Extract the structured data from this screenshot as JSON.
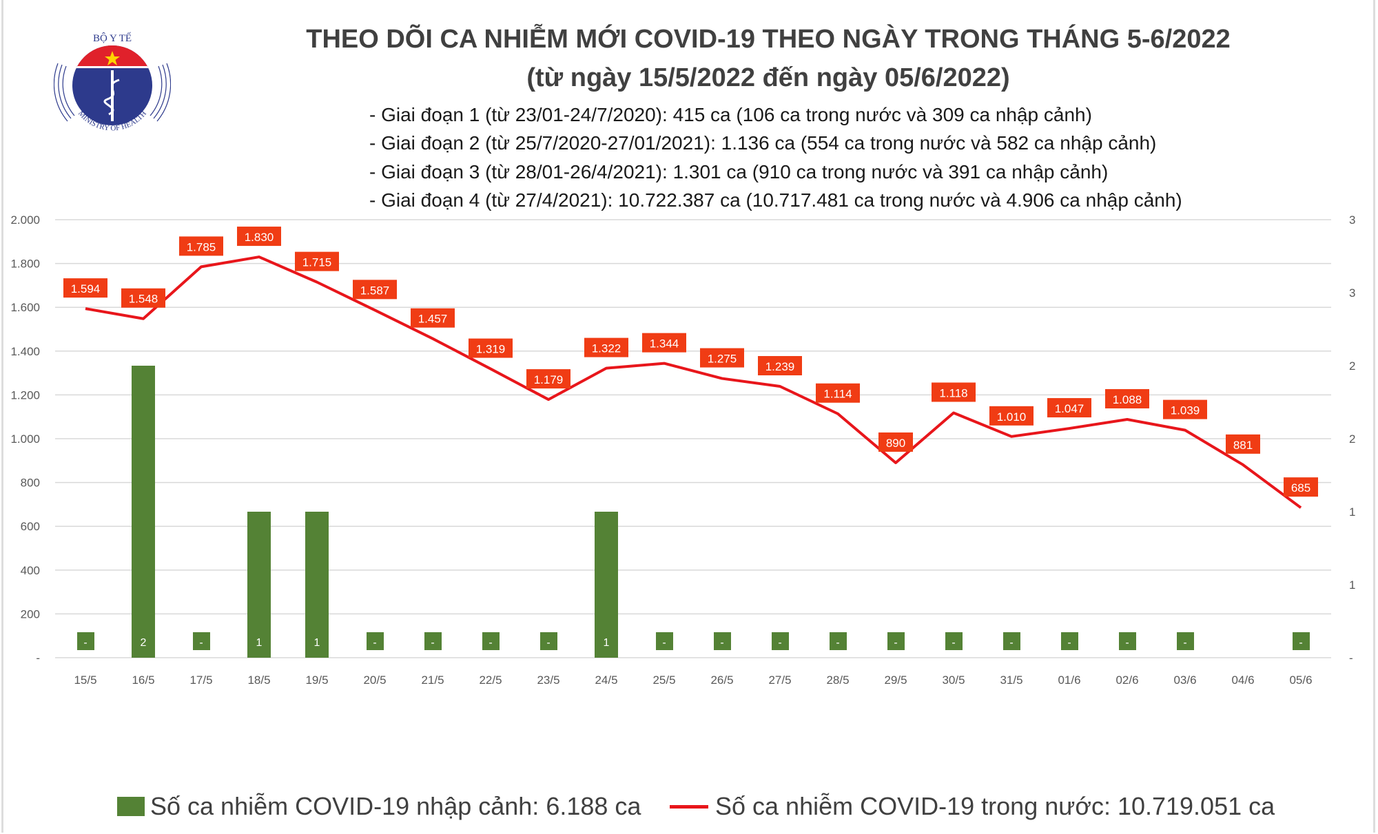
{
  "logo": {
    "text_top": "BỘ Y TẾ",
    "text_bottom": "MINISTRY OF HEALTH"
  },
  "header": {
    "title": "THEO DÕI CA NHIỄM MỚI COVID-19 THEO NGÀY TRONG THÁNG 5-6/2022",
    "subtitle": "(từ ngày 15/5/2022 đến ngày 05/6/2022)",
    "stages": [
      "- Giai đoạn 1 (từ 23/01-24/7/2020): 415 ca (106 ca trong nước và 309 ca nhập cảnh)",
      "- Giai đoạn 2 (từ 25/7/2020-27/01/2021): 1.136 ca (554 ca trong nước và 582 ca nhập cảnh)",
      "- Giai đoạn 3 (từ 28/01-26/4/2021): 1.301 ca (910 ca trong nước và 391 ca nhập cảnh)",
      "- Giai đoạn 4 (từ 27/4/2021): 10.722.387 ca (10.717.481 ca trong nước và 4.906 ca nhập cảnh)"
    ]
  },
  "chart_data": {
    "type": "bar+line",
    "categories": [
      "15/5",
      "16/5",
      "17/5",
      "18/5",
      "19/5",
      "20/5",
      "21/5",
      "22/5",
      "23/5",
      "24/5",
      "25/5",
      "26/5",
      "27/5",
      "28/5",
      "29/5",
      "30/5",
      "31/5",
      "01/6",
      "02/6",
      "03/6",
      "04/6",
      "05/6"
    ],
    "series": [
      {
        "name": "Số ca nhiễm COVID-19 nhập cảnh: 6.188 ca",
        "type": "bar",
        "axis": "right",
        "color": "#548235",
        "values": [
          0,
          2,
          0,
          1,
          1,
          0,
          0,
          0,
          0,
          1,
          0,
          0,
          0,
          0,
          0,
          0,
          0,
          0,
          0,
          0,
          null,
          0
        ],
        "labels": [
          "-",
          "2",
          "-",
          "1",
          "1",
          "-",
          "-",
          "-",
          "-",
          "1",
          "-",
          "-",
          "-",
          "-",
          "-",
          "-",
          "-",
          "-",
          "-",
          "-",
          "",
          "-"
        ]
      },
      {
        "name": "Số ca nhiễm COVID-19 trong nước: 10.719.051 ca",
        "type": "line",
        "axis": "left",
        "color": "#e8161b",
        "values": [
          1594,
          1548,
          1785,
          1830,
          1715,
          1587,
          1457,
          1319,
          1179,
          1322,
          1344,
          1275,
          1239,
          1114,
          890,
          1118,
          1010,
          1047,
          1088,
          1039,
          881,
          685
        ],
        "labels": [
          "1.594",
          "1.548",
          "1.785",
          "1.830",
          "1.715",
          "1.587",
          "1.457",
          "1.319",
          "1.179",
          "1.322",
          "1.344",
          "1.275",
          "1.239",
          "1.114",
          "890",
          "1.118",
          "1.010",
          "1.047",
          "1.088",
          "1.039",
          "881",
          "685"
        ]
      }
    ],
    "y_left": {
      "lim": [
        0,
        2000
      ],
      "ticks": [
        "-",
        "200",
        "400",
        "600",
        "800",
        "1.000",
        "1.200",
        "1.400",
        "1.600",
        "1.800",
        "2.000"
      ]
    },
    "y_right": {
      "lim": [
        0,
        3
      ],
      "ticks": [
        "-",
        "1",
        "1",
        "2",
        "2",
        "3",
        "3"
      ]
    },
    "grid": true,
    "legend": "bottom",
    "label_box_color": "#f03c14"
  }
}
